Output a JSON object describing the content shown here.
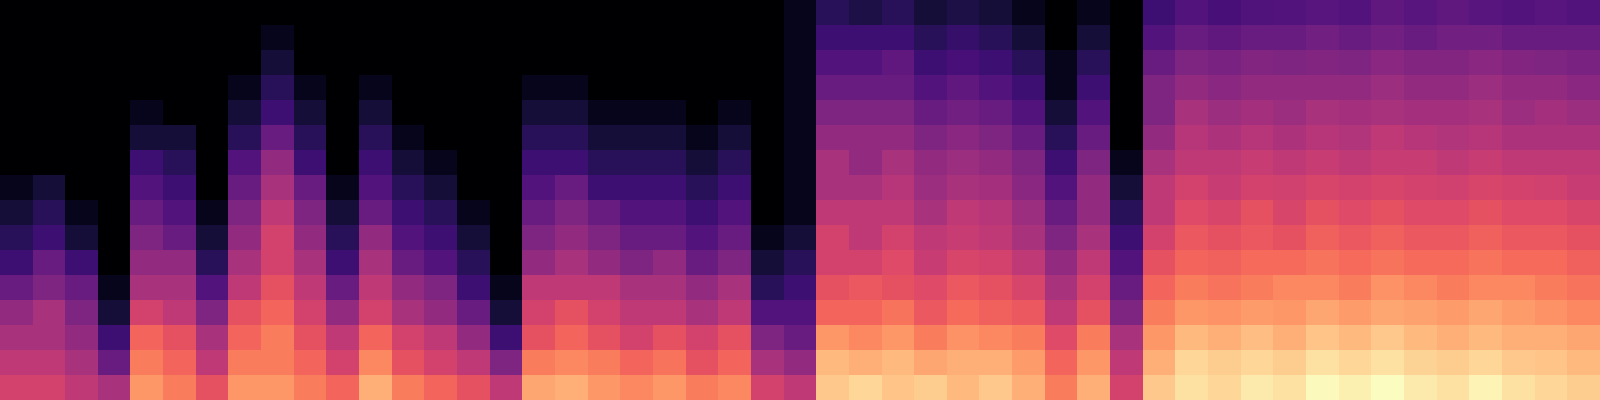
{
  "chart_data": {
    "type": "heatmap",
    "color": "magma",
    "tick_labels": false,
    "cells": [
      [
        0.55,
        0.5,
        0.45,
        0.4,
        0.3,
        0.2,
        0.15,
        0.1,
        0.05,
        0,
        0,
        0,
        0,
        0,
        0,
        0
      ],
      [
        0.55,
        0.5,
        0.45,
        0.45,
        0.35,
        0.3,
        0.2,
        0.15,
        0.1,
        0,
        0,
        0,
        0,
        0,
        0,
        0
      ],
      [
        0.5,
        0.45,
        0.4,
        0.35,
        0.3,
        0.2,
        0.1,
        0.05,
        0,
        0,
        0,
        0,
        0,
        0,
        0,
        0
      ],
      [
        0.45,
        0.3,
        0.2,
        0.1,
        0.05,
        0,
        0,
        0,
        0,
        0,
        0,
        0,
        0,
        0,
        0,
        0
      ],
      [
        0.75,
        0.7,
        0.65,
        0.55,
        0.45,
        0.4,
        0.35,
        0.3,
        0.25,
        0.2,
        0.1,
        0.05,
        0,
        0,
        0,
        0
      ],
      [
        0.7,
        0.65,
        0.6,
        0.5,
        0.45,
        0.4,
        0.3,
        0.25,
        0.2,
        0.15,
        0.1,
        0,
        0,
        0,
        0,
        0
      ],
      [
        0.6,
        0.5,
        0.45,
        0.35,
        0.25,
        0.15,
        0.1,
        0.05,
        0,
        0,
        0,
        0,
        0,
        0,
        0,
        0
      ],
      [
        0.75,
        0.7,
        0.65,
        0.6,
        0.5,
        0.45,
        0.4,
        0.35,
        0.3,
        0.25,
        0.15,
        0.1,
        0.05,
        0,
        0,
        0
      ],
      [
        0.75,
        0.7,
        0.7,
        0.65,
        0.6,
        0.55,
        0.55,
        0.5,
        0.45,
        0.4,
        0.3,
        0.2,
        0.15,
        0.1,
        0.05,
        0
      ],
      [
        0.7,
        0.65,
        0.6,
        0.55,
        0.5,
        0.45,
        0.4,
        0.35,
        0.3,
        0.2,
        0.15,
        0.1,
        0.05,
        0,
        0,
        0
      ],
      [
        0.65,
        0.55,
        0.5,
        0.4,
        0.3,
        0.2,
        0.15,
        0.1,
        0.05,
        0,
        0,
        0,
        0,
        0,
        0,
        0
      ],
      [
        0.8,
        0.72,
        0.65,
        0.55,
        0.5,
        0.45,
        0.4,
        0.3,
        0.25,
        0.2,
        0.15,
        0.1,
        0.05,
        0,
        0,
        0
      ],
      [
        0.7,
        0.6,
        0.55,
        0.45,
        0.4,
        0.3,
        0.25,
        0.2,
        0.15,
        0.1,
        0.05,
        0,
        0,
        0,
        0,
        0
      ],
      [
        0.65,
        0.55,
        0.5,
        0.4,
        0.35,
        0.25,
        0.2,
        0.15,
        0.1,
        0.05,
        0,
        0,
        0,
        0,
        0,
        0
      ],
      [
        0.6,
        0.5,
        0.4,
        0.3,
        0.2,
        0.15,
        0.1,
        0.05,
        0,
        0,
        0,
        0,
        0,
        0,
        0,
        0
      ],
      [
        0.5,
        0.35,
        0.2,
        0.1,
        0.05,
        0,
        0,
        0,
        0,
        0,
        0,
        0,
        0,
        0,
        0,
        0
      ],
      [
        0.78,
        0.7,
        0.6,
        0.55,
        0.5,
        0.4,
        0.35,
        0.3,
        0.25,
        0.2,
        0.15,
        0.1,
        0.05,
        0,
        0,
        0
      ],
      [
        0.8,
        0.72,
        0.65,
        0.6,
        0.5,
        0.45,
        0.4,
        0.35,
        0.3,
        0.2,
        0.15,
        0.1,
        0.05,
        0,
        0,
        0
      ],
      [
        0.75,
        0.7,
        0.6,
        0.55,
        0.5,
        0.4,
        0.35,
        0.3,
        0.2,
        0.15,
        0.1,
        0.05,
        0,
        0,
        0,
        0
      ],
      [
        0.72,
        0.65,
        0.55,
        0.5,
        0.45,
        0.35,
        0.3,
        0.25,
        0.2,
        0.15,
        0.1,
        0.05,
        0,
        0,
        0,
        0
      ],
      [
        0.75,
        0.68,
        0.6,
        0.5,
        0.45,
        0.4,
        0.3,
        0.25,
        0.2,
        0.15,
        0.1,
        0.05,
        0,
        0,
        0,
        0
      ],
      [
        0.7,
        0.6,
        0.55,
        0.45,
        0.4,
        0.3,
        0.25,
        0.2,
        0.15,
        0.1,
        0.05,
        0,
        0,
        0,
        0,
        0
      ],
      [
        0.72,
        0.65,
        0.6,
        0.5,
        0.45,
        0.35,
        0.3,
        0.25,
        0.2,
        0.15,
        0.1,
        0.05,
        0,
        0,
        0,
        0
      ],
      [
        0.55,
        0.45,
        0.35,
        0.25,
        0.15,
        0.1,
        0.05,
        0,
        0,
        0,
        0,
        0,
        0,
        0,
        0,
        0
      ],
      [
        0.5,
        0.4,
        0.3,
        0.25,
        0.2,
        0.15,
        0.1,
        0.05,
        0.05,
        0.05,
        0.05,
        0.05,
        0.05,
        0.05,
        0.05,
        0.05
      ],
      [
        0.85,
        0.82,
        0.75,
        0.65,
        0.6,
        0.55,
        0.55,
        0.5,
        0.45,
        0.45,
        0.4,
        0.35,
        0.3,
        0.25,
        0.2,
        0.15
      ],
      [
        0.88,
        0.8,
        0.72,
        0.65,
        0.62,
        0.55,
        0.5,
        0.5,
        0.45,
        0.4,
        0.4,
        0.35,
        0.3,
        0.25,
        0.2,
        0.12
      ],
      [
        0.84,
        0.82,
        0.75,
        0.68,
        0.6,
        0.58,
        0.55,
        0.5,
        0.48,
        0.45,
        0.4,
        0.35,
        0.3,
        0.28,
        0.2,
        0.15
      ],
      [
        0.86,
        0.78,
        0.7,
        0.62,
        0.58,
        0.52,
        0.5,
        0.45,
        0.42,
        0.4,
        0.35,
        0.3,
        0.25,
        0.2,
        0.15,
        0.1
      ],
      [
        0.82,
        0.8,
        0.74,
        0.66,
        0.62,
        0.56,
        0.52,
        0.5,
        0.45,
        0.42,
        0.38,
        0.32,
        0.28,
        0.22,
        0.18,
        0.12
      ],
      [
        0.85,
        0.8,
        0.72,
        0.64,
        0.6,
        0.55,
        0.5,
        0.48,
        0.44,
        0.4,
        0.35,
        0.3,
        0.25,
        0.2,
        0.15,
        0.1
      ],
      [
        0.8,
        0.76,
        0.7,
        0.62,
        0.56,
        0.5,
        0.45,
        0.42,
        0.38,
        0.35,
        0.3,
        0.25,
        0.2,
        0.15,
        0.1,
        0.05
      ],
      [
        0.7,
        0.65,
        0.58,
        0.5,
        0.45,
        0.4,
        0.35,
        0.3,
        0.25,
        0.2,
        0.15,
        0.1,
        0.05,
        0.05,
        0,
        0
      ],
      [
        0.8,
        0.75,
        0.7,
        0.6,
        0.55,
        0.5,
        0.45,
        0.4,
        0.4,
        0.35,
        0.3,
        0.25,
        0.2,
        0.15,
        0.1,
        0.05
      ],
      [
        0.55,
        0.5,
        0.45,
        0.35,
        0.3,
        0.25,
        0.2,
        0.15,
        0.1,
        0.05,
        0,
        0,
        0,
        0,
        0,
        0
      ],
      [
        0.85,
        0.8,
        0.75,
        0.7,
        0.65,
        0.6,
        0.55,
        0.5,
        0.5,
        0.45,
        0.4,
        0.35,
        0.35,
        0.3,
        0.25,
        0.2
      ],
      [
        0.9,
        0.88,
        0.82,
        0.75,
        0.7,
        0.65,
        0.62,
        0.58,
        0.55,
        0.5,
        0.48,
        0.45,
        0.4,
        0.35,
        0.3,
        0.25
      ],
      [
        0.88,
        0.86,
        0.8,
        0.74,
        0.68,
        0.64,
        0.6,
        0.56,
        0.52,
        0.5,
        0.46,
        0.42,
        0.38,
        0.34,
        0.28,
        0.22
      ],
      [
        0.92,
        0.88,
        0.83,
        0.76,
        0.7,
        0.66,
        0.62,
        0.6,
        0.55,
        0.52,
        0.48,
        0.44,
        0.4,
        0.36,
        0.3,
        0.24
      ],
      [
        0.9,
        0.86,
        0.8,
        0.75,
        0.72,
        0.66,
        0.6,
        0.56,
        0.54,
        0.5,
        0.46,
        0.42,
        0.4,
        0.35,
        0.3,
        0.25
      ],
      [
        0.95,
        0.9,
        0.84,
        0.78,
        0.72,
        0.68,
        0.64,
        0.6,
        0.56,
        0.52,
        0.48,
        0.45,
        0.4,
        0.36,
        0.32,
        0.26
      ],
      [
        0.93,
        0.88,
        0.82,
        0.76,
        0.7,
        0.66,
        0.62,
        0.58,
        0.55,
        0.5,
        0.47,
        0.44,
        0.4,
        0.35,
        0.3,
        0.25
      ],
      [
        0.96,
        0.9,
        0.85,
        0.78,
        0.74,
        0.68,
        0.64,
        0.6,
        0.56,
        0.52,
        0.5,
        0.45,
        0.42,
        0.38,
        0.32,
        0.28
      ],
      [
        0.92,
        0.87,
        0.82,
        0.77,
        0.72,
        0.66,
        0.62,
        0.58,
        0.55,
        0.52,
        0.48,
        0.44,
        0.4,
        0.36,
        0.3,
        0.26
      ],
      [
        0.9,
        0.86,
        0.8,
        0.76,
        0.7,
        0.66,
        0.62,
        0.58,
        0.54,
        0.5,
        0.47,
        0.44,
        0.4,
        0.36,
        0.32,
        0.28
      ],
      [
        0.94,
        0.88,
        0.82,
        0.78,
        0.72,
        0.68,
        0.64,
        0.6,
        0.56,
        0.52,
        0.48,
        0.45,
        0.42,
        0.38,
        0.32,
        0.26
      ],
      [
        0.9,
        0.85,
        0.8,
        0.76,
        0.72,
        0.66,
        0.62,
        0.58,
        0.55,
        0.5,
        0.46,
        0.42,
        0.4,
        0.36,
        0.3,
        0.25
      ],
      [
        0.88,
        0.84,
        0.8,
        0.74,
        0.7,
        0.66,
        0.62,
        0.58,
        0.54,
        0.5,
        0.46,
        0.44,
        0.4,
        0.35,
        0.3,
        0.26
      ],
      [
        0.86,
        0.82,
        0.78,
        0.72,
        0.68,
        0.64,
        0.6,
        0.56,
        0.52,
        0.5,
        0.46,
        0.42,
        0.38,
        0.34,
        0.3,
        0.25
      ]
    ]
  }
}
